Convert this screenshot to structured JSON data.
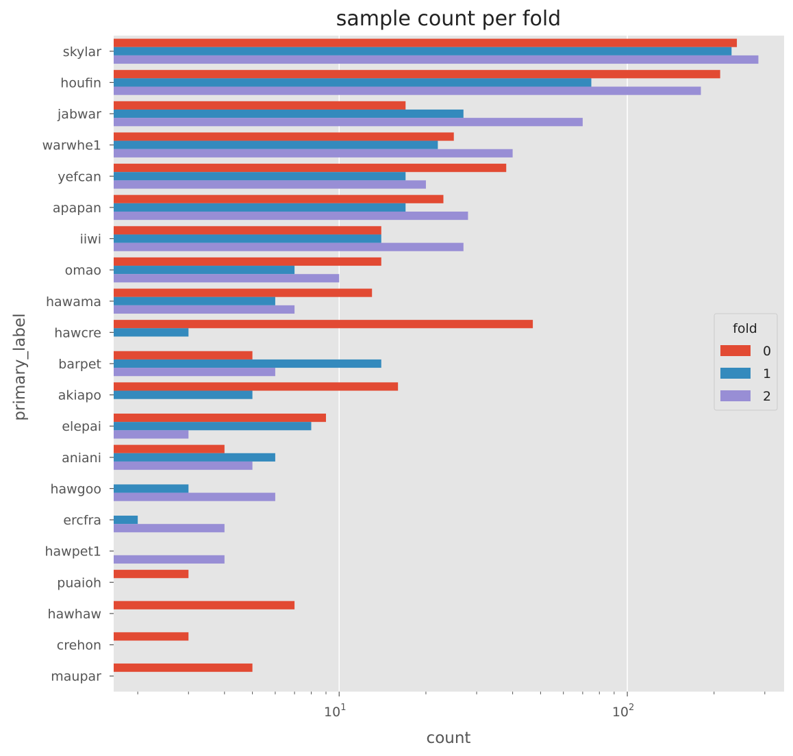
{
  "chart_data": {
    "type": "bar",
    "orientation": "horizontal",
    "title": "sample count per fold",
    "xlabel": "count",
    "ylabel": "primary_label",
    "x_scale": "log",
    "xlim": [
      1.65,
      350
    ],
    "x_ticks": [
      {
        "value": 10,
        "base": "10",
        "exp": "1"
      },
      {
        "value": 100,
        "base": "10",
        "exp": "2"
      }
    ],
    "grid": true,
    "legend": {
      "title": "fold",
      "placement": "right"
    },
    "categories": [
      "skylar",
      "houfin",
      "jabwar",
      "warwhe1",
      "yefcan",
      "apapan",
      "iiwi",
      "omao",
      "hawama",
      "hawcre",
      "barpet",
      "akiapo",
      "elepai",
      "aniani",
      "hawgoo",
      "ercfra",
      "hawpet1",
      "puaioh",
      "hawhaw",
      "crehon",
      "maupar"
    ],
    "series": [
      {
        "name": "0",
        "color": "#E24A33",
        "values": [
          240,
          210,
          17,
          25,
          38,
          23,
          14,
          14,
          13,
          47,
          5,
          16,
          9,
          4,
          null,
          null,
          null,
          3,
          7,
          3,
          5
        ]
      },
      {
        "name": "1",
        "color": "#348ABD",
        "values": [
          230,
          75,
          27,
          22,
          17,
          17,
          14,
          7,
          6,
          3,
          14,
          5,
          8,
          6,
          3,
          2,
          null,
          null,
          null,
          null,
          null
        ]
      },
      {
        "name": "2",
        "color": "#988ED5",
        "values": [
          285,
          180,
          70,
          40,
          20,
          28,
          27,
          10,
          7,
          null,
          6,
          null,
          3,
          5,
          6,
          4,
          4,
          null,
          null,
          null,
          null
        ]
      }
    ]
  }
}
